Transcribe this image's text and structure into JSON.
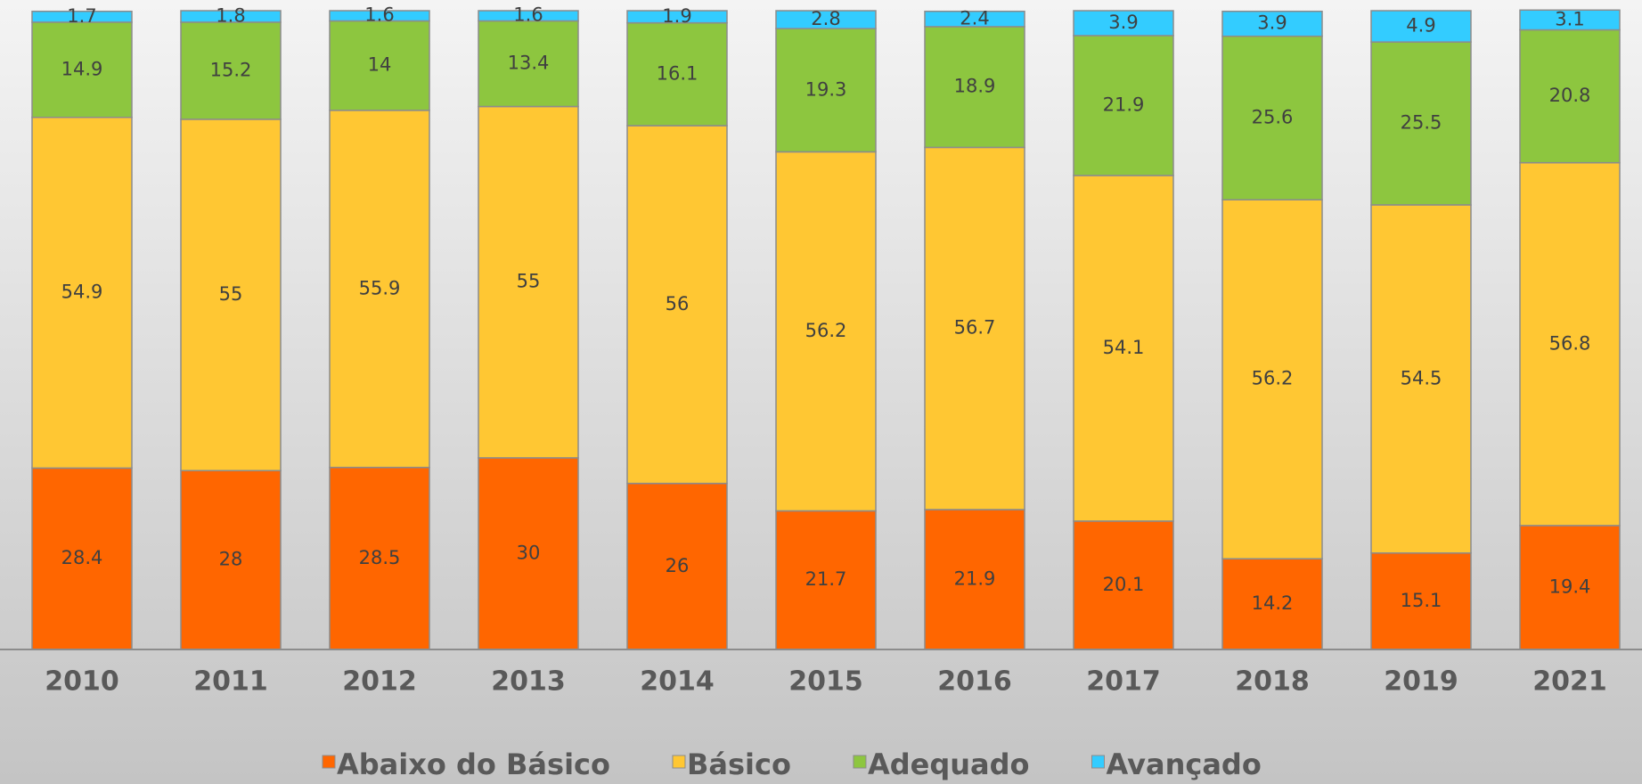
{
  "chart_data": {
    "type": "stacked_bar",
    "categories": [
      "2010",
      "2011",
      "2012",
      "2013",
      "2014",
      "2015",
      "2016",
      "2017",
      "2018",
      "2019",
      "2021"
    ],
    "series": [
      {
        "name": "Abaixo do Básico",
        "color": "#ff6600",
        "values": [
          28.4,
          28,
          28.5,
          30,
          26,
          21.7,
          21.9,
          20.1,
          14.2,
          15.1,
          19.4
        ]
      },
      {
        "name": "Básico",
        "color": "#ffc733",
        "values": [
          54.9,
          55,
          55.9,
          55,
          56,
          56.2,
          56.7,
          54.1,
          56.2,
          54.5,
          56.8
        ]
      },
      {
        "name": "Adequado",
        "color": "#8dc63f",
        "values": [
          14.9,
          15.2,
          14,
          13.4,
          16.1,
          19.3,
          18.9,
          21.9,
          25.6,
          25.5,
          20.8
        ]
      },
      {
        "name": "Avançado",
        "color": "#33ccff",
        "values": [
          1.7,
          1.8,
          1.6,
          1.6,
          1.9,
          2.8,
          2.4,
          3.9,
          3.9,
          4.9,
          3.1
        ]
      }
    ],
    "ylim": [
      0,
      100
    ]
  }
}
